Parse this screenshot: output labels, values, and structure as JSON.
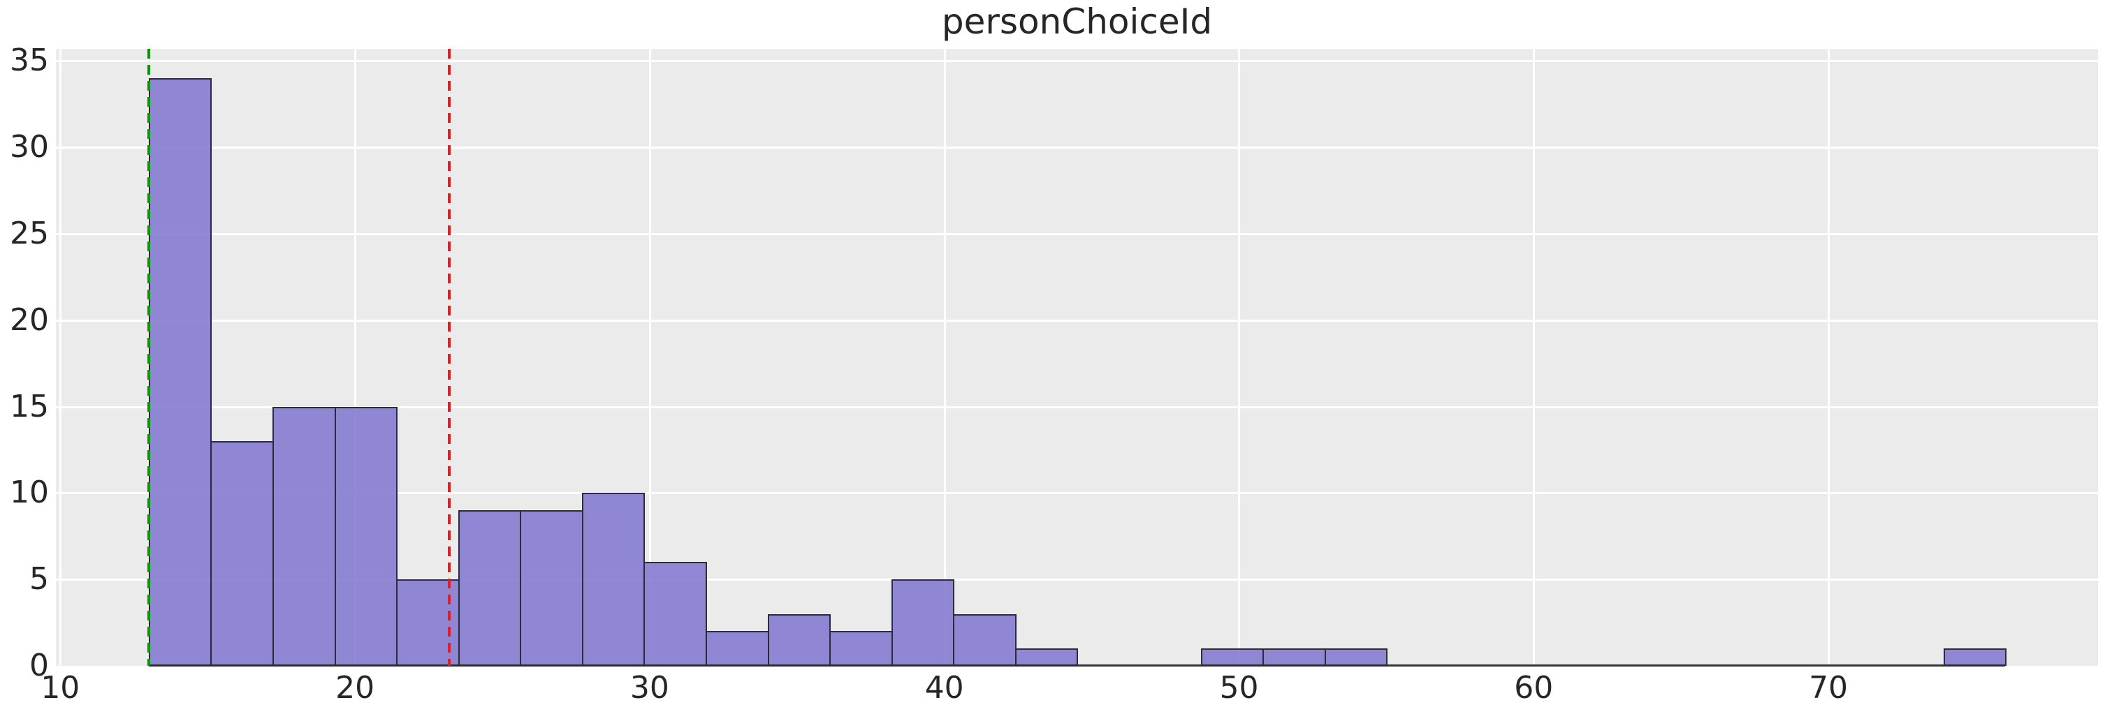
{
  "chart_data": {
    "type": "bar",
    "subtype": "histogram",
    "title": "personChoiceId",
    "bin_start": 13.0,
    "bin_width": 2.1,
    "bin_end": 76.0,
    "bin_edges": [
      13.0,
      15.1,
      17.2,
      19.3,
      21.4,
      23.5,
      25.6,
      27.7,
      29.8,
      31.9,
      34.0,
      36.1,
      38.2,
      40.3,
      42.4,
      44.5,
      46.6,
      48.7,
      50.8,
      52.9,
      55.0,
      57.1,
      59.2,
      61.3,
      63.4,
      65.5,
      67.6,
      69.7,
      71.8,
      73.9,
      76.0
    ],
    "counts": [
      34,
      13,
      15,
      15,
      5,
      9,
      9,
      10,
      6,
      2,
      3,
      2,
      5,
      3,
      1,
      0,
      0,
      1,
      1,
      1,
      0,
      0,
      0,
      0,
      0,
      0,
      0,
      0,
      0,
      1
    ],
    "x_ticks": [
      10,
      20,
      30,
      40,
      50,
      60,
      70
    ],
    "y_ticks": [
      0,
      5,
      10,
      15,
      20,
      25,
      30,
      35
    ],
    "xlim": [
      9.85,
      79.15
    ],
    "ylim": [
      0,
      35.7
    ],
    "grid": true,
    "legend": null,
    "xlabel": "",
    "ylabel": "",
    "vlines": [
      {
        "name": "green-dashed-line",
        "x": 13.0,
        "color": "#009a00",
        "style": "dashed"
      },
      {
        "name": "red-dashed-line",
        "x": 23.2,
        "color": "#e8191f",
        "style": "dashed"
      }
    ],
    "colors": {
      "bar_fill": "#8F87D3",
      "bar_edge": "#2E2E36",
      "plot_bg": "#ebebeb",
      "grid": "#ffffff",
      "text": "#262626",
      "figure_bg": "#ffffff"
    }
  }
}
